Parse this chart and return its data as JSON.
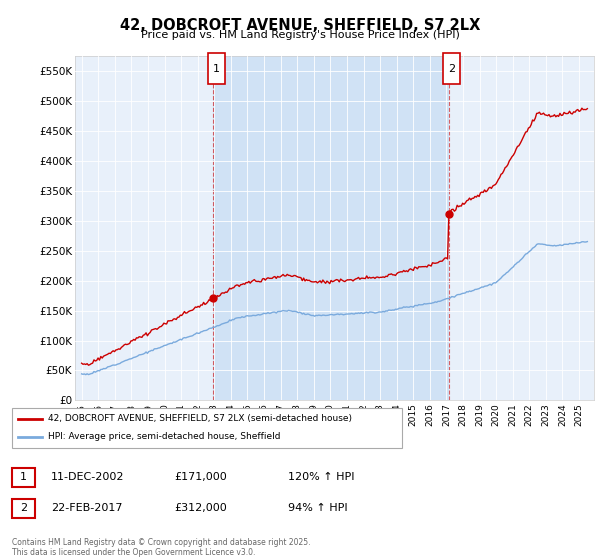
{
  "title": "42, DOBCROFT AVENUE, SHEFFIELD, S7 2LX",
  "subtitle": "Price paid vs. HM Land Registry's House Price Index (HPI)",
  "property_color": "#cc0000",
  "hpi_color": "#7aaadd",
  "bg_color": "#e8f0fa",
  "bg_color_between": "#d0e2f5",
  "ylim": [
    0,
    575000
  ],
  "yticks": [
    0,
    50000,
    100000,
    150000,
    200000,
    250000,
    300000,
    350000,
    400000,
    450000,
    500000,
    550000
  ],
  "ytick_labels": [
    "£0",
    "£50K",
    "£100K",
    "£150K",
    "£200K",
    "£250K",
    "£300K",
    "£350K",
    "£400K",
    "£450K",
    "£500K",
    "£550K"
  ],
  "x_start_year": 1995,
  "x_end_year": 2025,
  "sale1_year": 2002.94,
  "sale1_price": 171000,
  "sale2_year": 2017.14,
  "sale2_price": 312000,
  "legend_property": "42, DOBCROFT AVENUE, SHEFFIELD, S7 2LX (semi-detached house)",
  "legend_hpi": "HPI: Average price, semi-detached house, Sheffield",
  "footer": "Contains HM Land Registry data © Crown copyright and database right 2025.\nThis data is licensed under the Open Government Licence v3.0.",
  "table_row1": [
    "1",
    "11-DEC-2002",
    "£171,000",
    "120% ↑ HPI"
  ],
  "table_row2": [
    "2",
    "22-FEB-2017",
    "£312,000",
    "94% ↑ HPI"
  ]
}
